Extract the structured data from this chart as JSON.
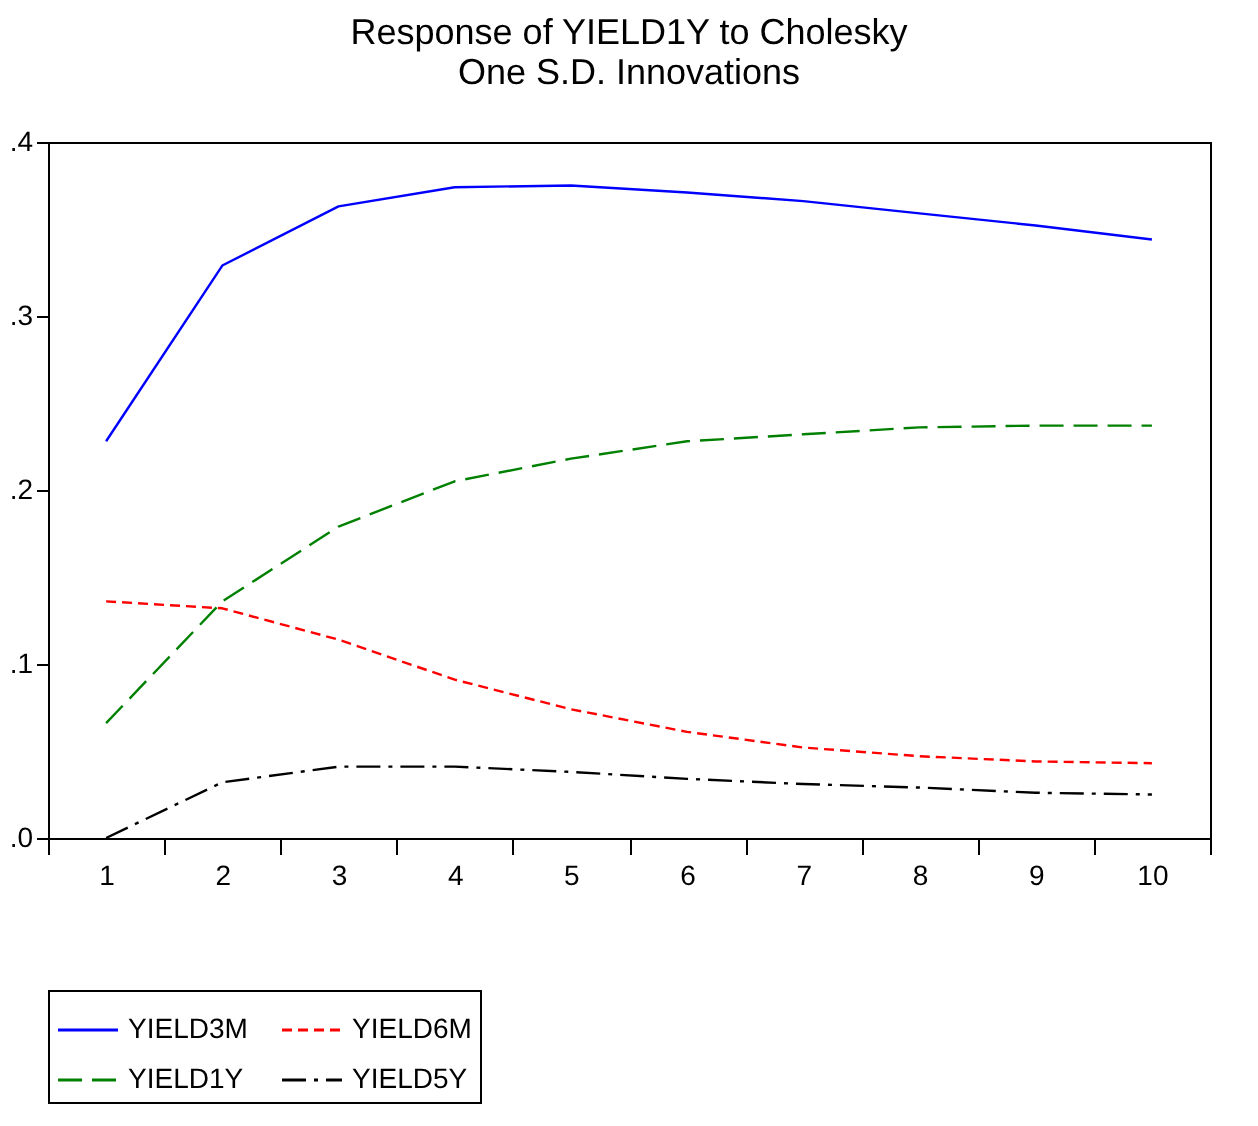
{
  "chart_data": {
    "type": "line",
    "title": "Response of YIELD1Y to Cholesky\nOne S.D. Innovations",
    "categories": [
      "1",
      "2",
      "3",
      "4",
      "5",
      "6",
      "7",
      "8",
      "9",
      "10"
    ],
    "series": [
      {
        "name": "YIELD3M",
        "color": "#0000ff",
        "line_style": "solid",
        "values": [
          0.228,
          0.329,
          0.363,
          0.374,
          0.375,
          0.371,
          0.366,
          0.359,
          0.352,
          0.344
        ]
      },
      {
        "name": "YIELD6M",
        "color": "#ff0000",
        "line_style": "dashed",
        "values": [
          0.136,
          0.132,
          0.114,
          0.091,
          0.074,
          0.061,
          0.052,
          0.047,
          0.044,
          0.043
        ]
      },
      {
        "name": "YIELD1Y",
        "color": "#008000",
        "line_style": "longdash",
        "values": [
          0.066,
          0.136,
          0.179,
          0.205,
          0.218,
          0.228,
          0.232,
          0.236,
          0.237,
          0.237
        ]
      },
      {
        "name": "YIELD5Y",
        "color": "#000000",
        "line_style": "dashdot",
        "values": [
          0.0,
          0.032,
          0.041,
          0.041,
          0.038,
          0.034,
          0.031,
          0.029,
          0.026,
          0.025
        ]
      }
    ],
    "ylim": [
      0,
      0.4
    ],
    "yticks": [
      {
        "value": 0,
        "label": ".0"
      },
      {
        "value": 0.1,
        "label": ".1"
      },
      {
        "value": 0.2,
        "label": ".2"
      },
      {
        "value": 0.3,
        "label": ".3"
      },
      {
        "value": 0.4,
        "label": ".4"
      }
    ],
    "grid": false,
    "legend": "bottom",
    "marker": "none"
  }
}
